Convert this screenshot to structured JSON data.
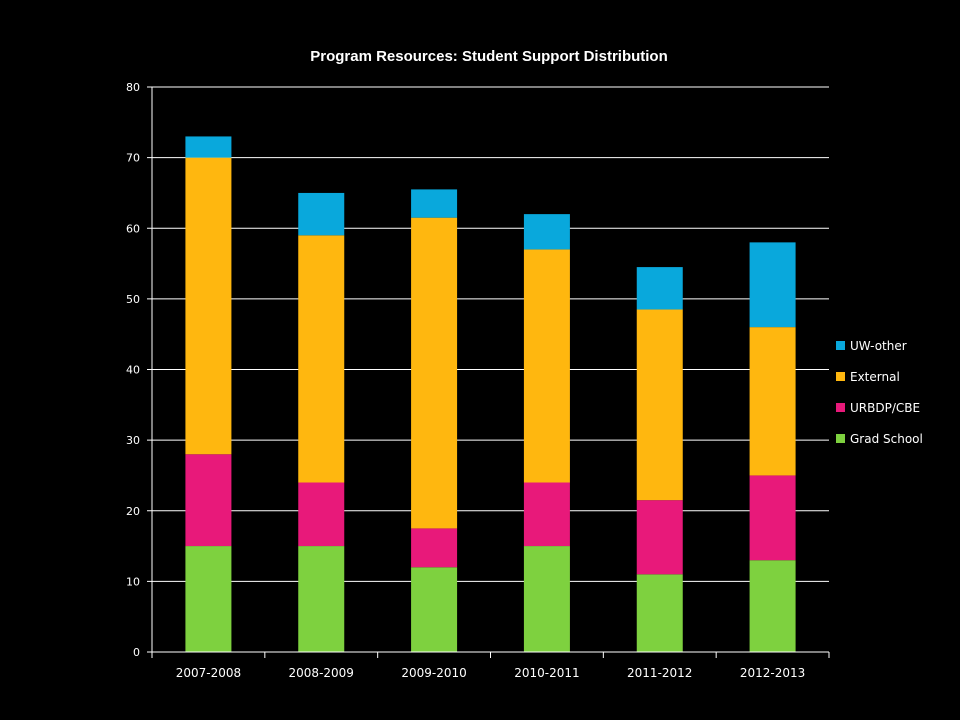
{
  "chart_data": {
    "type": "bar",
    "stacked": true,
    "title": "Program Resources:  Student Support Distribution",
    "xlabel": "",
    "ylabel": "",
    "ylim": [
      0,
      80
    ],
    "yticks": [
      0,
      10,
      20,
      30,
      40,
      50,
      60,
      70,
      80
    ],
    "grid": true,
    "legend_position": "right",
    "categories": [
      "2007-2008",
      "2008-2009",
      "2009-2010",
      "2010-2011",
      "2011-2012",
      "2012-2013"
    ],
    "series": [
      {
        "name": "Grad School",
        "color": "#7ed13f",
        "values": [
          15,
          15,
          12,
          15,
          11,
          13
        ]
      },
      {
        "name": "URBDP/CBE",
        "color": "#e8197a",
        "values": [
          13,
          9,
          5.5,
          9,
          10.5,
          12
        ]
      },
      {
        "name": "External",
        "color": "#ffb70f",
        "values": [
          42,
          35,
          44,
          33,
          27,
          21
        ]
      },
      {
        "name": "UW-other",
        "color": "#09a8dc",
        "values": [
          3,
          6,
          4,
          5,
          6,
          12
        ]
      }
    ],
    "legend_order": [
      "UW-other",
      "External",
      "URBDP/CBE",
      "Grad School"
    ]
  }
}
